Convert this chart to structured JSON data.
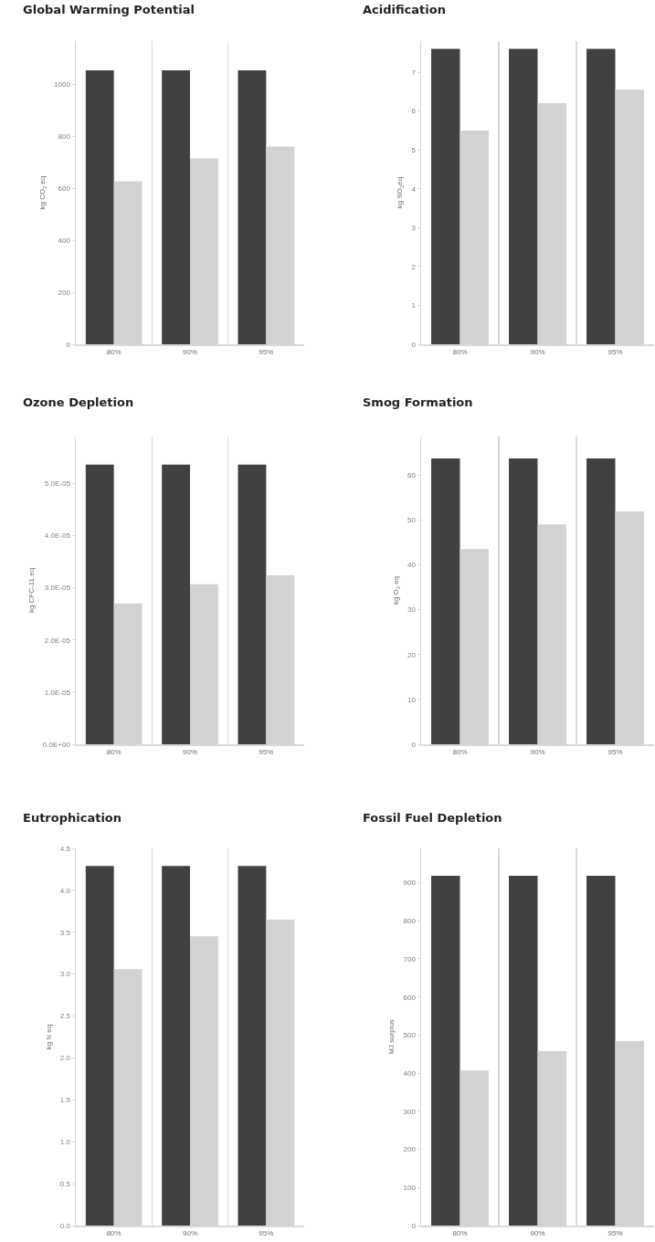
{
  "chart_data": [
    {
      "type": "bar",
      "title": "Global Warming Potential",
      "ylabel": "kg CO$_{2}$ eq",
      "categories": [
        "80%",
        "90%",
        "95%"
      ],
      "series": [
        {
          "color": "#414042",
          "values": [
            1053,
            1053,
            1053
          ]
        },
        {
          "color": "#d1d2d4",
          "values": [
            626,
            714,
            760
          ]
        }
      ],
      "ylim": [
        0,
        1165
      ],
      "yticks": [
        0,
        200,
        400,
        600,
        800,
        1000
      ],
      "grid": "x"
    },
    {
      "type": "bar",
      "title": "Acidification",
      "ylabel": "kg SO$_{2}$eq",
      "categories": [
        "80%",
        "90%",
        "95%"
      ],
      "series": [
        {
          "color": "#414042",
          "values": [
            7.6,
            7.6,
            7.6
          ]
        },
        {
          "color": "#d1d2d4",
          "values": [
            5.5,
            6.2,
            6.55
          ]
        }
      ],
      "ylim": [
        0,
        7.8
      ],
      "yticks": [
        0,
        1,
        2,
        3,
        4,
        5,
        6,
        7
      ],
      "grid": "x"
    },
    {
      "type": "bar",
      "title": "Ozone Depletion",
      "ylabel": "kg CFC-11 eq",
      "categories": [
        "80%",
        "90%",
        "95%"
      ],
      "series": [
        {
          "color": "#414042",
          "values": [
            5.36e-05,
            5.36e-05,
            5.36e-05
          ]
        },
        {
          "color": "#d1d2d4",
          "values": [
            2.7e-05,
            3.07e-05,
            3.24e-05
          ]
        }
      ],
      "ylim": [
        0,
        5.9e-05
      ],
      "yticks": [
        {
          "value": 0,
          "label": "0.0E+00"
        },
        {
          "value": 1e-05,
          "label": "1.0E-05"
        },
        {
          "value": 2e-05,
          "label": "2.0E-05"
        },
        {
          "value": 3e-05,
          "label": "3.0E-05"
        },
        {
          "value": 4e-05,
          "label": "4.0E-05"
        },
        {
          "value": 5e-05,
          "label": "5.0E-05"
        }
      ],
      "grid": "x"
    },
    {
      "type": "bar",
      "title": "Smog Formation",
      "ylabel": "kg O$_{3}$ eq",
      "categories": [
        "80%",
        "90%",
        "95%"
      ],
      "series": [
        {
          "color": "#414042",
          "values": [
            63.7,
            63.7,
            63.7
          ]
        },
        {
          "color": "#d1d2d4",
          "values": [
            43.5,
            49,
            51.9
          ]
        }
      ],
      "ylim": [
        0,
        68.6
      ],
      "yticks": [
        0,
        10,
        20,
        30,
        40,
        50,
        60
      ],
      "grid": "x"
    },
    {
      "type": "bar",
      "title": "Eutrophication",
      "ylabel": "kg N eq",
      "categories": [
        "80%",
        "90%",
        "95%"
      ],
      "series": [
        {
          "color": "#414042",
          "values": [
            4.29,
            4.29,
            4.29
          ]
        },
        {
          "color": "#d1d2d4",
          "values": [
            3.06,
            3.45,
            3.65
          ]
        }
      ],
      "ylim": [
        0,
        4.5
      ],
      "yticks": [
        {
          "value": 0,
          "label": "0.0"
        },
        {
          "value": 0.5,
          "label": "0.5"
        },
        {
          "value": 1,
          "label": "1.0"
        },
        {
          "value": 1.5,
          "label": "1.5"
        },
        {
          "value": 2,
          "label": "2.0"
        },
        {
          "value": 2.5,
          "label": "2.5"
        },
        {
          "value": 3,
          "label": "3.0"
        },
        {
          "value": 3.5,
          "label": "3.5"
        },
        {
          "value": 4,
          "label": "4.0"
        },
        {
          "value": 4.5,
          "label": "4.5"
        }
      ],
      "grid": "x"
    },
    {
      "type": "bar",
      "title": "Fossil Fuel Depletion",
      "ylabel": "MJ surplus",
      "categories": [
        "80%",
        "90%",
        "95%"
      ],
      "series": [
        {
          "color": "#414042",
          "values": [
            918,
            918,
            918
          ]
        },
        {
          "color": "#d1d2d4",
          "values": [
            407,
            458,
            485
          ]
        }
      ],
      "ylim": [
        0,
        990
      ],
      "yticks": [
        0,
        100,
        200,
        300,
        400,
        500,
        600,
        700,
        800,
        900
      ],
      "grid": "x"
    }
  ]
}
